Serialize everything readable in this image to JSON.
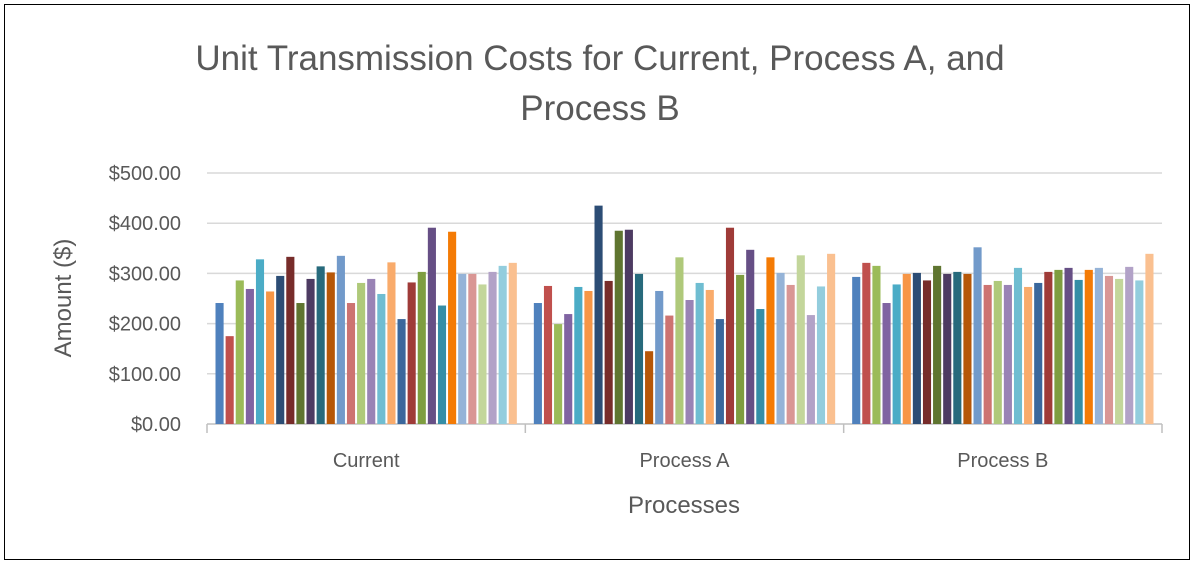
{
  "chart_data": {
    "type": "bar",
    "title_lines": [
      "Unit Transmission Costs for Current, Process A, and",
      "Process B"
    ],
    "xlabel": "Processes",
    "ylabel": "Amount ($)",
    "categories": [
      "Current",
      "Process A",
      "Process B"
    ],
    "ylim": [
      0,
      500
    ],
    "yticks": [
      0,
      100,
      200,
      300,
      400,
      500
    ],
    "ytick_labels": [
      "$0.00",
      "$100.00",
      "$200.00",
      "$300.00",
      "$400.00",
      "$500.00"
    ],
    "grid": true,
    "legend": "none",
    "series_colors": [
      "#4F81BD",
      "#C0504D",
      "#9BBB59",
      "#8064A2",
      "#4BACC6",
      "#F79646",
      "#2C4D75",
      "#772C2A",
      "#5F7530",
      "#4D3B62",
      "#276A7C",
      "#B65708",
      "#729ACA",
      "#CD7371",
      "#AFC97A",
      "#9983B5",
      "#6FBDD1",
      "#F9AB6B",
      "#3A679C",
      "#9F3B38",
      "#7E9D40",
      "#664F85",
      "#358EA6",
      "#F47B05",
      "#95B3D7",
      "#D99694",
      "#C3D69B",
      "#B2A2C7",
      "#93CDDD",
      "#FAC090"
    ],
    "values": [
      [
        241,
        175,
        286,
        269,
        328,
        264,
        295,
        333,
        241,
        289,
        314,
        302,
        335,
        241,
        281,
        289,
        259,
        322,
        209,
        282,
        303,
        391,
        236,
        383,
        299,
        299,
        278,
        303,
        315,
        321
      ],
      [
        241,
        275,
        199,
        219,
        273,
        265,
        435,
        285,
        385,
        387,
        299,
        145,
        265,
        216,
        332,
        247,
        281,
        267,
        209,
        391,
        297,
        347,
        229,
        332,
        301,
        277,
        336,
        217,
        274,
        339
      ],
      [
        293,
        321,
        315,
        241,
        278,
        299,
        301,
        286,
        315,
        299,
        303,
        299,
        352,
        277,
        285,
        277,
        311,
        273,
        281,
        303,
        307,
        311,
        287,
        307,
        311,
        295,
        289,
        313,
        286,
        339
      ]
    ]
  }
}
